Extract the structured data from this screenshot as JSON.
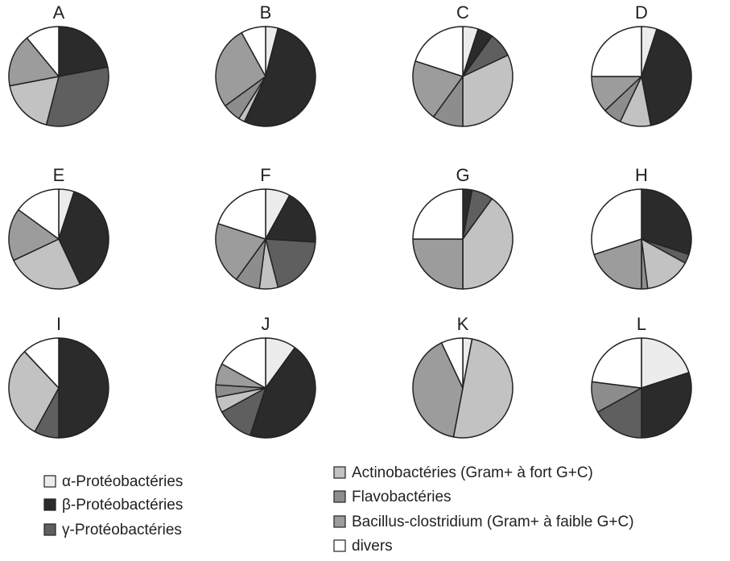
{
  "chart_data": {
    "type": "pie",
    "categories": [
      "α-Protéobactéries",
      "β-Protéobactéries",
      "γ-Protéobactéries",
      "Actinobactéries (Gram+ à fort G+C)",
      "Flavobactéries",
      "Bacillus-clostridium (Gram+  à faible G+C)",
      "divers"
    ],
    "colors": [
      "#ececec",
      "#2b2b2b",
      "#5f5f5f",
      "#c2c2c2",
      "#8d8d8d",
      "#9c9c9c",
      "#ffffff"
    ],
    "pies": [
      {
        "title": "A",
        "values": [
          0,
          22,
          32,
          18,
          0,
          17,
          11
        ]
      },
      {
        "title": "B",
        "values": [
          4,
          53,
          0,
          2,
          6,
          27,
          8
        ]
      },
      {
        "title": "C",
        "values": [
          5,
          5,
          8,
          32,
          10,
          20,
          20
        ]
      },
      {
        "title": "D",
        "values": [
          5,
          42,
          0,
          10,
          6,
          12,
          25
        ]
      },
      {
        "title": "E",
        "values": [
          5,
          38,
          0,
          25,
          0,
          17,
          15
        ]
      },
      {
        "title": "F",
        "values": [
          8,
          18,
          20,
          6,
          8,
          20,
          20
        ]
      },
      {
        "title": "G",
        "values": [
          0,
          3,
          7,
          40,
          0,
          25,
          25
        ]
      },
      {
        "title": "H",
        "values": [
          0,
          30,
          3,
          15,
          2,
          20,
          30
        ]
      },
      {
        "title": "I",
        "values": [
          0,
          50,
          8,
          30,
          0,
          0,
          12
        ]
      },
      {
        "title": "J",
        "values": [
          10,
          45,
          12,
          5,
          4,
          7,
          17
        ]
      },
      {
        "title": "K",
        "values": [
          3,
          0,
          0,
          50,
          0,
          40,
          7
        ]
      },
      {
        "title": "L",
        "values": [
          20,
          30,
          17,
          0,
          10,
          0,
          23
        ]
      }
    ]
  }
}
